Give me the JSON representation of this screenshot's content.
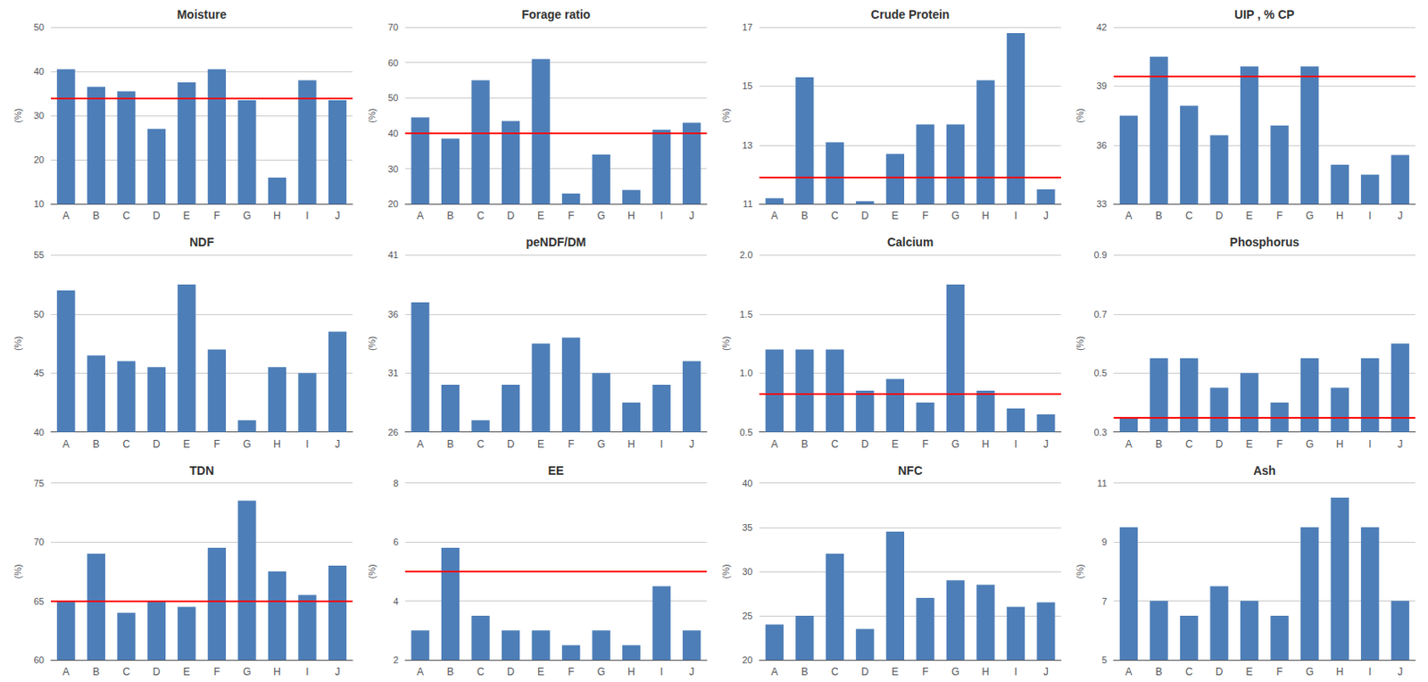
{
  "chart_data": [
    {
      "type": "bar",
      "title": "Moisture",
      "ylabel": "(%)",
      "categories": [
        "A",
        "B",
        "C",
        "D",
        "E",
        "F",
        "G",
        "H",
        "I",
        "J"
      ],
      "values": [
        40.5,
        36.5,
        35.5,
        27.0,
        37.5,
        40.5,
        33.5,
        16.0,
        38.0,
        33.5
      ],
      "color": "#4d7eb8",
      "ylim": [
        10,
        50
      ],
      "yticks": [
        10,
        20,
        30,
        40,
        50
      ],
      "grid": true,
      "red_line": {
        "value": 34.0,
        "color": "#ff0000"
      }
    },
    {
      "type": "bar",
      "title": "Forage ratio",
      "ylabel": "(%)",
      "categories": [
        "A",
        "B",
        "C",
        "D",
        "E",
        "F",
        "G",
        "H",
        "I",
        "J"
      ],
      "values": [
        44.5,
        38.5,
        55.0,
        43.5,
        61.0,
        23.0,
        34.0,
        24.0,
        41.0,
        43.0
      ],
      "color": "#4d7eb8",
      "ylim": [
        20,
        70
      ],
      "yticks": [
        20,
        30,
        40,
        50,
        60,
        70
      ],
      "grid": true,
      "red_line": {
        "value": 40.0,
        "color": "#ff0000"
      }
    },
    {
      "type": "bar",
      "title": "Crude Protein",
      "ylabel": "(%)",
      "categories": [
        "A",
        "B",
        "C",
        "D",
        "E",
        "F",
        "G",
        "H",
        "I",
        "J"
      ],
      "values": [
        11.2,
        15.3,
        13.1,
        11.1,
        12.7,
        13.7,
        13.7,
        15.2,
        16.8,
        11.5
      ],
      "color": "#4d7eb8",
      "ylim": [
        11,
        17
      ],
      "yticks": [
        11,
        13,
        15,
        17
      ],
      "grid": true,
      "red_line": {
        "value": 11.9,
        "color": "#ff0000"
      }
    },
    {
      "type": "bar",
      "title": "UIP , % CP",
      "ylabel": "(%)",
      "categories": [
        "A",
        "B",
        "C",
        "D",
        "E",
        "F",
        "G",
        "H",
        "I",
        "J"
      ],
      "values": [
        37.5,
        40.5,
        38.0,
        36.5,
        40.0,
        37.0,
        40.0,
        35.0,
        34.5,
        35.5
      ],
      "color": "#4d7eb8",
      "ylim": [
        33,
        42
      ],
      "yticks": [
        33,
        36,
        39,
        42
      ],
      "grid": true,
      "red_line": {
        "value": 39.5,
        "color": "#ff0000"
      }
    },
    {
      "type": "bar",
      "title": "NDF",
      "ylabel": "(%)",
      "categories": [
        "A",
        "B",
        "C",
        "D",
        "E",
        "F",
        "G",
        "H",
        "I",
        "J"
      ],
      "values": [
        52.0,
        46.5,
        46.0,
        45.5,
        52.5,
        47.0,
        41.0,
        45.5,
        45.0,
        48.5
      ],
      "color": "#4d7eb8",
      "ylim": [
        40,
        55
      ],
      "yticks": [
        40,
        45,
        50,
        55
      ],
      "grid": true
    },
    {
      "type": "bar",
      "title": "peNDF/DM",
      "ylabel": "(%)",
      "categories": [
        "A",
        "B",
        "C",
        "D",
        "E",
        "F",
        "G",
        "H",
        "I",
        "J"
      ],
      "values": [
        37.0,
        30.0,
        27.0,
        30.0,
        33.5,
        34.0,
        31.0,
        28.5,
        30.0,
        32.0
      ],
      "color": "#4d7eb8",
      "ylim": [
        26,
        41
      ],
      "yticks": [
        26,
        31,
        36,
        41
      ],
      "grid": true
    },
    {
      "type": "bar",
      "title": "Calcium",
      "ylabel": "(%)",
      "categories": [
        "A",
        "B",
        "C",
        "D",
        "E",
        "F",
        "G",
        "H",
        "I",
        "J"
      ],
      "values": [
        1.2,
        1.2,
        1.2,
        0.85,
        0.95,
        0.75,
        1.75,
        0.85,
        0.7,
        0.65
      ],
      "color": "#4d7eb8",
      "ylim": [
        0.5,
        2.0
      ],
      "yticks": [
        0.5,
        {
          "value": 1.0,
          "label": "1.0"
        },
        1.5,
        {
          "value": 2.0,
          "label": "2.0"
        }
      ],
      "grid": true,
      "red_line": {
        "value": 0.82,
        "color": "#ff0000"
      }
    },
    {
      "type": "bar",
      "title": "Phosphorus",
      "ylabel": "(%)",
      "categories": [
        "A",
        "B",
        "C",
        "D",
        "E",
        "F",
        "G",
        "H",
        "I",
        "J"
      ],
      "values": [
        0.35,
        0.55,
        0.55,
        0.45,
        0.5,
        0.4,
        0.55,
        0.45,
        0.55,
        0.6
      ],
      "color": "#4d7eb8",
      "ylim": [
        0.3,
        0.9
      ],
      "yticks": [
        0.3,
        0.5,
        0.7,
        0.9
      ],
      "grid": true,
      "red_line": {
        "value": 0.35,
        "color": "#ff0000"
      }
    },
    {
      "type": "bar",
      "title": "TDN",
      "ylabel": "(%)",
      "categories": [
        "A",
        "B",
        "C",
        "D",
        "E",
        "F",
        "G",
        "H",
        "I",
        "J"
      ],
      "values": [
        65.0,
        69.0,
        64.0,
        65.0,
        64.5,
        69.5,
        73.5,
        67.5,
        65.5,
        68.0
      ],
      "color": "#4d7eb8",
      "ylim": [
        60,
        75
      ],
      "yticks": [
        60,
        65,
        70,
        75
      ],
      "grid": true,
      "red_line": {
        "value": 65.0,
        "color": "#ff0000"
      }
    },
    {
      "type": "bar",
      "title": "EE",
      "ylabel": "(%)",
      "categories": [
        "A",
        "B",
        "C",
        "D",
        "E",
        "F",
        "G",
        "H",
        "I",
        "J"
      ],
      "values": [
        3.0,
        5.8,
        3.5,
        3.0,
        3.0,
        2.5,
        3.0,
        2.5,
        4.5,
        3.0
      ],
      "color": "#4d7eb8",
      "ylim": [
        2,
        8
      ],
      "yticks": [
        2,
        4,
        6,
        8
      ],
      "grid": true,
      "red_line": {
        "value": 5.0,
        "color": "#ff0000"
      }
    },
    {
      "type": "bar",
      "title": "NFC",
      "ylabel": "(%)",
      "categories": [
        "A",
        "B",
        "C",
        "D",
        "E",
        "F",
        "G",
        "H",
        "I",
        "J"
      ],
      "values": [
        24.0,
        25.0,
        32.0,
        23.5,
        34.5,
        27.0,
        29.0,
        28.5,
        26.0,
        26.5
      ],
      "color": "#4d7eb8",
      "ylim": [
        20,
        40
      ],
      "yticks": [
        20,
        25,
        30,
        35,
        40
      ],
      "grid": true
    },
    {
      "type": "bar",
      "title": "Ash",
      "ylabel": "(%)",
      "categories": [
        "A",
        "B",
        "C",
        "D",
        "E",
        "F",
        "G",
        "H",
        "I",
        "J"
      ],
      "values": [
        9.5,
        7.0,
        6.5,
        7.5,
        7.0,
        6.5,
        9.5,
        10.5,
        9.5,
        7.0
      ],
      "color": "#4d7eb8",
      "ylim": [
        5,
        11
      ],
      "yticks": [
        5,
        7,
        9,
        11
      ],
      "grid": true
    }
  ]
}
